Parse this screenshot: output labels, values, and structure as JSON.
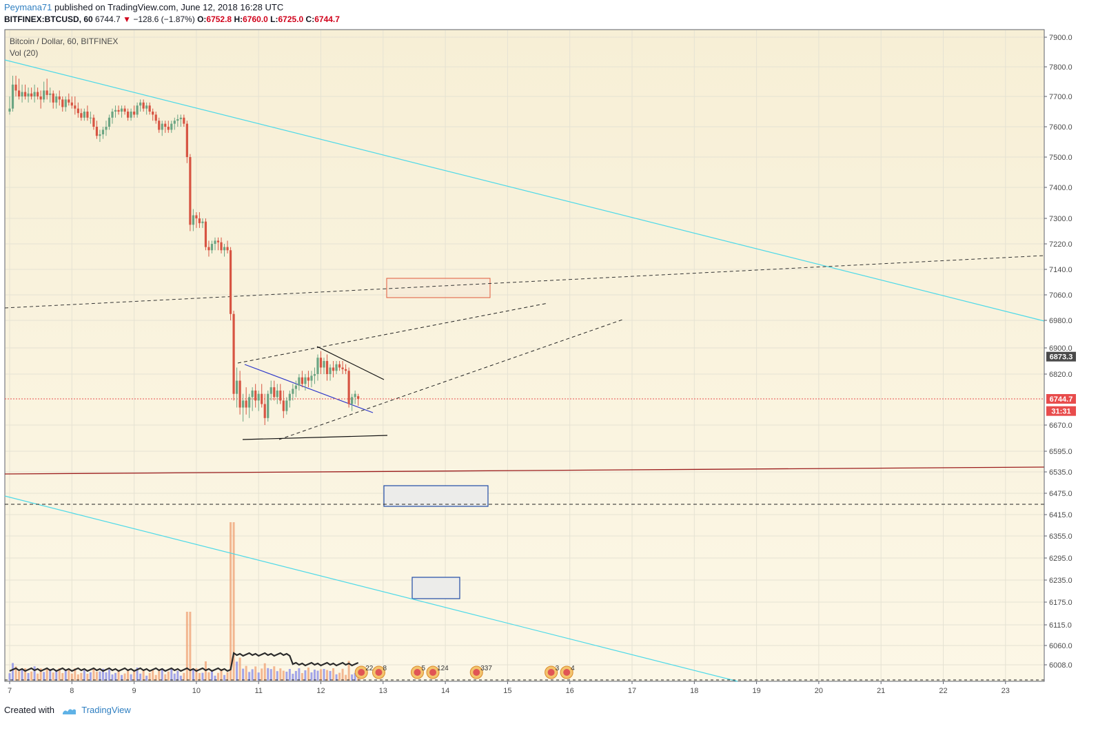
{
  "header": {
    "username": "Peymana71",
    "published_text": "published on TradingView.com, June 12, 2018 16:28 UTC",
    "symbol": "BITFINEX:BTCUSD, 60",
    "last": "6744.7",
    "change_arrow": "▼",
    "change": "−128.6 (−1.87%)",
    "o_label": "O:",
    "o_value": "6752.8",
    "h_label": "H:",
    "h_value": "6760.0",
    "l_label": "L:",
    "l_value": "6725.0",
    "c_label": "C:",
    "c_value": "6744.7"
  },
  "legend": {
    "series_title": "Bitcoin / Dollar, 60, BITFINEX",
    "volume_title": "Vol (20)"
  },
  "footer": {
    "created_with": "Created with",
    "brand": "TradingView"
  },
  "colors": {
    "up": "#6ba583",
    "down": "#d75442",
    "bg_top": "#f8f0d8",
    "bg_bottom": "#fbf6e3",
    "price_line": "#e84c4c",
    "trend_cyan": "#4dd9e8",
    "support": "#9b1c1c",
    "blue_line": "#2b35c9"
  },
  "chart_data": {
    "type": "candlestick",
    "title": "Bitcoin / Dollar, 60, BITFINEX",
    "x_ticks": [
      "7",
      "8",
      "9",
      "10",
      "11",
      "12",
      "13",
      "14",
      "15",
      "16",
      "17",
      "18",
      "19",
      "20",
      "21",
      "22",
      "23"
    ],
    "y_ticks": [
      "7900.0",
      "7800.0",
      "7700.0",
      "7600.0",
      "7500.0",
      "7400.0",
      "7300.0",
      "7220.0",
      "7140.0",
      "7060.0",
      "6980.0",
      "6900.0",
      "6820.0",
      "6670.0",
      "6595.0",
      "6535.0",
      "6475.0",
      "6415.0",
      "6355.0",
      "6295.0",
      "6235.0",
      "6175.0",
      "6115.0",
      "6060.0",
      "6008.0"
    ],
    "price_badges": [
      {
        "value": 6873.3,
        "label": "6873.3",
        "color": "#4a4a4a"
      },
      {
        "value": 6744.7,
        "label": "6744.7",
        "color": "#e84c4c"
      },
      {
        "value": 6710,
        "label": "31:31",
        "color": "#e84c4c"
      }
    ],
    "candles": [
      {
        "day": 7.0,
        "o": 7650,
        "h": 7700,
        "l": 7640,
        "c": 7660
      },
      {
        "day": 7.05,
        "o": 7660,
        "h": 7770,
        "l": 7650,
        "c": 7740
      },
      {
        "day": 7.1,
        "o": 7740,
        "h": 7770,
        "l": 7700,
        "c": 7720
      },
      {
        "day": 7.15,
        "o": 7720,
        "h": 7760,
        "l": 7690,
        "c": 7700
      },
      {
        "day": 7.2,
        "o": 7700,
        "h": 7740,
        "l": 7680,
        "c": 7715
      },
      {
        "day": 7.25,
        "o": 7715,
        "h": 7740,
        "l": 7690,
        "c": 7700
      },
      {
        "day": 7.3,
        "o": 7700,
        "h": 7730,
        "l": 7680,
        "c": 7710
      },
      {
        "day": 7.35,
        "o": 7710,
        "h": 7730,
        "l": 7690,
        "c": 7700
      },
      {
        "day": 7.4,
        "o": 7700,
        "h": 7740,
        "l": 7680,
        "c": 7715
      },
      {
        "day": 7.45,
        "o": 7715,
        "h": 7730,
        "l": 7690,
        "c": 7700
      },
      {
        "day": 7.5,
        "o": 7700,
        "h": 7720,
        "l": 7660,
        "c": 7690
      },
      {
        "day": 7.55,
        "o": 7690,
        "h": 7750,
        "l": 7680,
        "c": 7720
      },
      {
        "day": 7.6,
        "o": 7720,
        "h": 7760,
        "l": 7690,
        "c": 7705
      },
      {
        "day": 7.65,
        "o": 7705,
        "h": 7730,
        "l": 7680,
        "c": 7710
      },
      {
        "day": 7.7,
        "o": 7710,
        "h": 7720,
        "l": 7660,
        "c": 7680
      },
      {
        "day": 7.75,
        "o": 7680,
        "h": 7710,
        "l": 7660,
        "c": 7700
      },
      {
        "day": 7.8,
        "o": 7700,
        "h": 7720,
        "l": 7670,
        "c": 7690
      },
      {
        "day": 7.85,
        "o": 7690,
        "h": 7700,
        "l": 7650,
        "c": 7665
      },
      {
        "day": 7.9,
        "o": 7665,
        "h": 7700,
        "l": 7650,
        "c": 7690
      },
      {
        "day": 7.95,
        "o": 7690,
        "h": 7710,
        "l": 7670,
        "c": 7680
      },
      {
        "day": 8.0,
        "o": 7680,
        "h": 7700,
        "l": 7660,
        "c": 7670
      },
      {
        "day": 8.05,
        "o": 7670,
        "h": 7700,
        "l": 7640,
        "c": 7660
      },
      {
        "day": 8.1,
        "o": 7660,
        "h": 7680,
        "l": 7630,
        "c": 7645
      },
      {
        "day": 8.15,
        "o": 7645,
        "h": 7660,
        "l": 7620,
        "c": 7630
      },
      {
        "day": 8.2,
        "o": 7630,
        "h": 7660,
        "l": 7620,
        "c": 7650
      },
      {
        "day": 8.25,
        "o": 7650,
        "h": 7670,
        "l": 7620,
        "c": 7630
      },
      {
        "day": 8.3,
        "o": 7630,
        "h": 7650,
        "l": 7610,
        "c": 7630
      },
      {
        "day": 8.35,
        "o": 7630,
        "h": 7640,
        "l": 7590,
        "c": 7600
      },
      {
        "day": 8.4,
        "o": 7600,
        "h": 7620,
        "l": 7560,
        "c": 7570
      },
      {
        "day": 8.45,
        "o": 7570,
        "h": 7590,
        "l": 7550,
        "c": 7575
      },
      {
        "day": 8.5,
        "o": 7575,
        "h": 7600,
        "l": 7560,
        "c": 7590
      },
      {
        "day": 8.55,
        "o": 7590,
        "h": 7620,
        "l": 7570,
        "c": 7600
      },
      {
        "day": 8.6,
        "o": 7600,
        "h": 7640,
        "l": 7590,
        "c": 7630
      },
      {
        "day": 8.65,
        "o": 7630,
        "h": 7660,
        "l": 7610,
        "c": 7650
      },
      {
        "day": 8.7,
        "o": 7650,
        "h": 7670,
        "l": 7630,
        "c": 7655
      },
      {
        "day": 8.75,
        "o": 7655,
        "h": 7670,
        "l": 7640,
        "c": 7650
      },
      {
        "day": 8.8,
        "o": 7650,
        "h": 7670,
        "l": 7630,
        "c": 7660
      },
      {
        "day": 8.85,
        "o": 7660,
        "h": 7670,
        "l": 7640,
        "c": 7650
      },
      {
        "day": 8.9,
        "o": 7650,
        "h": 7660,
        "l": 7620,
        "c": 7630
      },
      {
        "day": 8.95,
        "o": 7630,
        "h": 7660,
        "l": 7620,
        "c": 7650
      },
      {
        "day": 9.0,
        "o": 7650,
        "h": 7670,
        "l": 7630,
        "c": 7640
      },
      {
        "day": 9.05,
        "o": 7640,
        "h": 7680,
        "l": 7630,
        "c": 7670
      },
      {
        "day": 9.1,
        "o": 7670,
        "h": 7690,
        "l": 7650,
        "c": 7680
      },
      {
        "day": 9.15,
        "o": 7680,
        "h": 7690,
        "l": 7650,
        "c": 7660
      },
      {
        "day": 9.2,
        "o": 7660,
        "h": 7680,
        "l": 7640,
        "c": 7670
      },
      {
        "day": 9.25,
        "o": 7670,
        "h": 7680,
        "l": 7640,
        "c": 7650
      },
      {
        "day": 9.3,
        "o": 7650,
        "h": 7660,
        "l": 7620,
        "c": 7640
      },
      {
        "day": 9.35,
        "o": 7640,
        "h": 7650,
        "l": 7610,
        "c": 7620
      },
      {
        "day": 9.4,
        "o": 7620,
        "h": 7630,
        "l": 7580,
        "c": 7590
      },
      {
        "day": 9.45,
        "o": 7590,
        "h": 7620,
        "l": 7570,
        "c": 7610
      },
      {
        "day": 9.5,
        "o": 7610,
        "h": 7620,
        "l": 7580,
        "c": 7600
      },
      {
        "day": 9.55,
        "o": 7600,
        "h": 7620,
        "l": 7580,
        "c": 7590
      },
      {
        "day": 9.6,
        "o": 7590,
        "h": 7620,
        "l": 7580,
        "c": 7610
      },
      {
        "day": 9.65,
        "o": 7610,
        "h": 7630,
        "l": 7590,
        "c": 7620
      },
      {
        "day": 9.7,
        "o": 7620,
        "h": 7640,
        "l": 7600,
        "c": 7625
      },
      {
        "day": 9.75,
        "o": 7625,
        "h": 7640,
        "l": 7600,
        "c": 7630
      },
      {
        "day": 9.8,
        "o": 7630,
        "h": 7640,
        "l": 7600,
        "c": 7610
      },
      {
        "day": 9.85,
        "o": 7610,
        "h": 7620,
        "l": 7480,
        "c": 7500
      },
      {
        "day": 9.9,
        "o": 7500,
        "h": 7510,
        "l": 7260,
        "c": 7280
      },
      {
        "day": 9.95,
        "o": 7280,
        "h": 7330,
        "l": 7260,
        "c": 7310
      },
      {
        "day": 10.0,
        "o": 7310,
        "h": 7320,
        "l": 7270,
        "c": 7300
      },
      {
        "day": 10.05,
        "o": 7300,
        "h": 7320,
        "l": 7270,
        "c": 7285
      },
      {
        "day": 10.1,
        "o": 7285,
        "h": 7300,
        "l": 7270,
        "c": 7290
      },
      {
        "day": 10.15,
        "o": 7290,
        "h": 7300,
        "l": 7200,
        "c": 7210
      },
      {
        "day": 10.2,
        "o": 7210,
        "h": 7230,
        "l": 7180,
        "c": 7200
      },
      {
        "day": 10.25,
        "o": 7200,
        "h": 7230,
        "l": 7190,
        "c": 7220
      },
      {
        "day": 10.3,
        "o": 7220,
        "h": 7240,
        "l": 7200,
        "c": 7230
      },
      {
        "day": 10.35,
        "o": 7230,
        "h": 7240,
        "l": 7200,
        "c": 7225
      },
      {
        "day": 10.4,
        "o": 7225,
        "h": 7240,
        "l": 7190,
        "c": 7200
      },
      {
        "day": 10.45,
        "o": 7200,
        "h": 7220,
        "l": 7180,
        "c": 7210
      },
      {
        "day": 10.5,
        "o": 7210,
        "h": 7230,
        "l": 7190,
        "c": 7200
      },
      {
        "day": 10.55,
        "o": 7200,
        "h": 7210,
        "l": 6980,
        "c": 7000
      },
      {
        "day": 10.6,
        "o": 7000,
        "h": 7010,
        "l": 6740,
        "c": 6760
      },
      {
        "day": 10.65,
        "o": 6760,
        "h": 6840,
        "l": 6720,
        "c": 6800
      },
      {
        "day": 10.7,
        "o": 6800,
        "h": 6830,
        "l": 6700,
        "c": 6720
      },
      {
        "day": 10.75,
        "o": 6720,
        "h": 6760,
        "l": 6680,
        "c": 6740
      },
      {
        "day": 10.8,
        "o": 6740,
        "h": 6780,
        "l": 6700,
        "c": 6720
      },
      {
        "day": 10.85,
        "o": 6720,
        "h": 6760,
        "l": 6690,
        "c": 6750
      },
      {
        "day": 10.9,
        "o": 6750,
        "h": 6780,
        "l": 6710,
        "c": 6770
      },
      {
        "day": 10.95,
        "o": 6770,
        "h": 6790,
        "l": 6720,
        "c": 6740
      },
      {
        "day": 11.0,
        "o": 6740,
        "h": 6770,
        "l": 6710,
        "c": 6760
      },
      {
        "day": 11.05,
        "o": 6760,
        "h": 6790,
        "l": 6720,
        "c": 6730
      },
      {
        "day": 11.1,
        "o": 6730,
        "h": 6760,
        "l": 6670,
        "c": 6690
      },
      {
        "day": 11.15,
        "o": 6690,
        "h": 6770,
        "l": 6680,
        "c": 6760
      },
      {
        "day": 11.2,
        "o": 6760,
        "h": 6800,
        "l": 6740,
        "c": 6780
      },
      {
        "day": 11.25,
        "o": 6780,
        "h": 6800,
        "l": 6740,
        "c": 6750
      },
      {
        "day": 11.3,
        "o": 6750,
        "h": 6790,
        "l": 6730,
        "c": 6770
      },
      {
        "day": 11.35,
        "o": 6770,
        "h": 6790,
        "l": 6730,
        "c": 6740
      },
      {
        "day": 11.4,
        "o": 6740,
        "h": 6770,
        "l": 6690,
        "c": 6710
      },
      {
        "day": 11.45,
        "o": 6710,
        "h": 6750,
        "l": 6700,
        "c": 6740
      },
      {
        "day": 11.5,
        "o": 6740,
        "h": 6770,
        "l": 6720,
        "c": 6760
      },
      {
        "day": 11.55,
        "o": 6760,
        "h": 6790,
        "l": 6740,
        "c": 6775
      },
      {
        "day": 11.6,
        "o": 6775,
        "h": 6800,
        "l": 6750,
        "c": 6785
      },
      {
        "day": 11.65,
        "o": 6785,
        "h": 6820,
        "l": 6770,
        "c": 6810
      },
      {
        "day": 11.7,
        "o": 6810,
        "h": 6830,
        "l": 6780,
        "c": 6790
      },
      {
        "day": 11.75,
        "o": 6790,
        "h": 6820,
        "l": 6770,
        "c": 6810
      },
      {
        "day": 11.8,
        "o": 6810,
        "h": 6830,
        "l": 6780,
        "c": 6800
      },
      {
        "day": 11.85,
        "o": 6800,
        "h": 6830,
        "l": 6780,
        "c": 6815
      },
      {
        "day": 11.9,
        "o": 6815,
        "h": 6840,
        "l": 6790,
        "c": 6820
      },
      {
        "day": 11.95,
        "o": 6820,
        "h": 6880,
        "l": 6800,
        "c": 6870
      },
      {
        "day": 12.0,
        "o": 6870,
        "h": 6890,
        "l": 6820,
        "c": 6840
      },
      {
        "day": 12.05,
        "o": 6840,
        "h": 6870,
        "l": 6820,
        "c": 6860
      },
      {
        "day": 12.1,
        "o": 6860,
        "h": 6880,
        "l": 6800,
        "c": 6820
      },
      {
        "day": 12.15,
        "o": 6820,
        "h": 6850,
        "l": 6800,
        "c": 6840
      },
      {
        "day": 12.2,
        "o": 6840,
        "h": 6860,
        "l": 6810,
        "c": 6830
      },
      {
        "day": 12.25,
        "o": 6830,
        "h": 6860,
        "l": 6820,
        "c": 6850
      },
      {
        "day": 12.3,
        "o": 6850,
        "h": 6860,
        "l": 6830,
        "c": 6840
      },
      {
        "day": 12.35,
        "o": 6840,
        "h": 6860,
        "l": 6820,
        "c": 6835
      },
      {
        "day": 12.4,
        "o": 6835,
        "h": 6850,
        "l": 6820,
        "c": 6830
      },
      {
        "day": 12.45,
        "o": 6830,
        "h": 6840,
        "l": 6720,
        "c": 6730
      },
      {
        "day": 12.5,
        "o": 6730,
        "h": 6760,
        "l": 6710,
        "c": 6750
      },
      {
        "day": 12.55,
        "o": 6750,
        "h": 6770,
        "l": 6730,
        "c": 6760
      },
      {
        "day": 12.6,
        "o": 6752.8,
        "h": 6760,
        "l": 6725,
        "c": 6744.7
      }
    ],
    "volume_events": [
      {
        "day": 12.65,
        "label": "22"
      },
      {
        "day": 12.93,
        "label": "8"
      },
      {
        "day": 13.55,
        "label": "5"
      },
      {
        "day": 13.8,
        "label": "124"
      },
      {
        "day": 14.5,
        "label": "337"
      },
      {
        "day": 15.7,
        "label": "3"
      },
      {
        "day": 15.95,
        "label": "4"
      }
    ]
  }
}
